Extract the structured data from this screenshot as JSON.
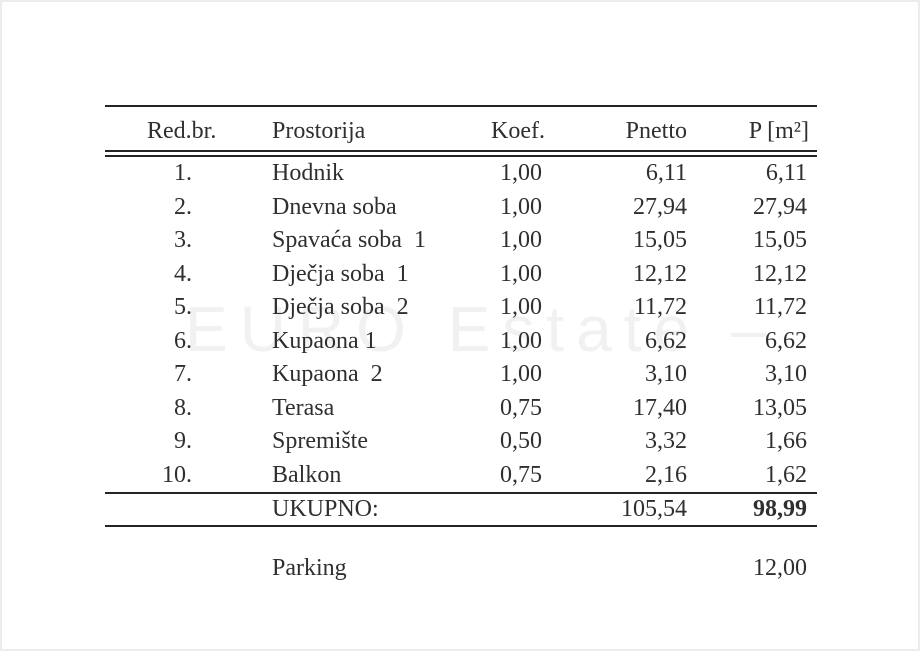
{
  "page": {
    "background": "#ffffff",
    "frame_border_color": "#ececec"
  },
  "watermark": {
    "text": "EURO Estate –",
    "color": "#f1f1f1"
  },
  "colors": {
    "text": "#2f2f2f",
    "rule": "#242424"
  },
  "table": {
    "headers": [
      "Red.br.",
      "Prostorija",
      "Koef.",
      "Pnetto",
      "P [m²]"
    ],
    "rows": [
      {
        "num": "1.",
        "room": "Hodnik",
        "koef": "1,00",
        "pnetto": "6,11",
        "p": "6,11"
      },
      {
        "num": "2.",
        "room": "Dnevna soba",
        "koef": "1,00",
        "pnetto": "27,94",
        "p": "27,94"
      },
      {
        "num": "3.",
        "room": "Spavaća soba  1",
        "koef": "1,00",
        "pnetto": "15,05",
        "p": "15,05"
      },
      {
        "num": "4.",
        "room": "Dječja soba  1",
        "koef": "1,00",
        "pnetto": "12,12",
        "p": "12,12"
      },
      {
        "num": "5.",
        "room": "Dječja soba  2",
        "koef": "1,00",
        "pnetto": "11,72",
        "p": "11,72"
      },
      {
        "num": "6.",
        "room": "Kupaona 1",
        "koef": "1,00",
        "pnetto": "6,62",
        "p": "6,62"
      },
      {
        "num": "7.",
        "room": "Kupaona  2",
        "koef": "1,00",
        "pnetto": "3,10",
        "p": "3,10"
      },
      {
        "num": "8.",
        "room": "Terasa",
        "koef": "0,75",
        "pnetto": "17,40",
        "p": "13,05"
      },
      {
        "num": "9.",
        "room": "Spremište",
        "koef": "0,50",
        "pnetto": "3,32",
        "p": "1,66"
      },
      {
        "num": "10.",
        "room": "Balkon",
        "koef": "0,75",
        "pnetto": "2,16",
        "p": "1,62"
      }
    ],
    "total": {
      "label": "UKUPNO:",
      "pnetto": "105,54",
      "p": "98,99"
    }
  },
  "extras": {
    "parking_label": "Parking",
    "parking_value": "12,00"
  }
}
